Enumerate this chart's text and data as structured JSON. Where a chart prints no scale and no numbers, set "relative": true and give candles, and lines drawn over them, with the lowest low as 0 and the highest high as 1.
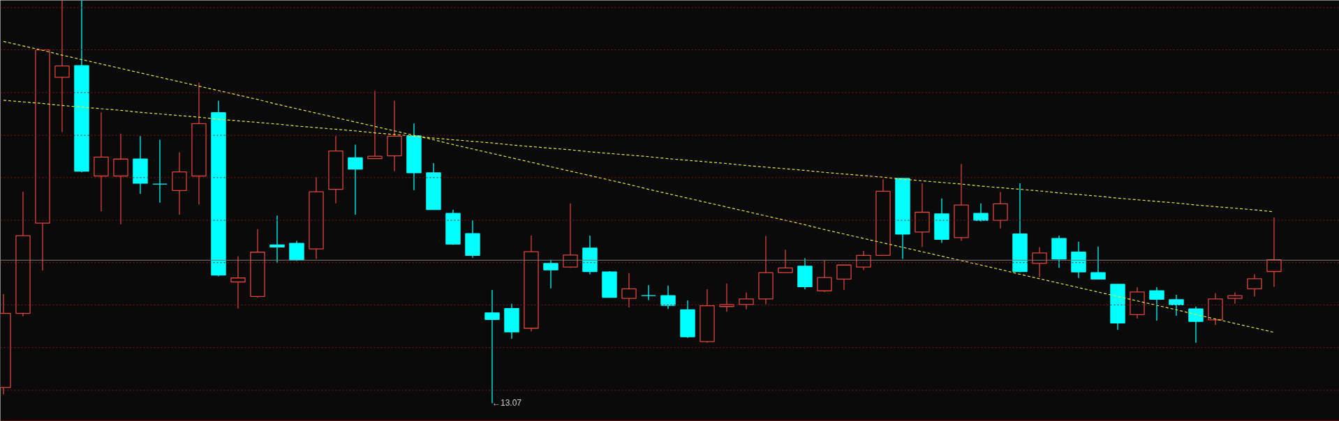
{
  "chart_data": {
    "type": "candlestick",
    "relative": true,
    "categories": [
      null,
      null,
      null,
      null,
      null,
      null,
      null,
      null,
      null,
      null,
      null,
      null,
      null,
      null,
      null,
      null,
      null,
      null,
      null,
      null,
      null,
      null,
      null,
      null,
      null,
      null,
      null,
      null,
      null,
      null,
      null,
      null,
      null,
      null,
      null,
      null,
      null,
      null,
      null,
      null,
      null,
      null,
      null,
      null,
      null,
      null,
      null,
      null,
      null,
      null,
      null,
      null,
      null,
      null,
      null,
      null,
      null,
      null,
      null,
      null,
      null,
      null,
      null,
      null,
      null,
      null
    ],
    "ohlc": [
      [
        0.039,
        0.271,
        0.022,
        0.223
      ],
      [
        0.223,
        0.525,
        0.216,
        0.416
      ],
      [
        0.447,
        0.877,
        0.329,
        0.877
      ],
      [
        0.809,
        1,
        0.673,
        0.837
      ],
      [
        0.838,
        1,
        0.573,
        0.576
      ],
      [
        0.564,
        0.722,
        0.476,
        0.611
      ],
      [
        0.564,
        0.669,
        0.444,
        0.606
      ],
      [
        0.606,
        0.663,
        0.52,
        0.546
      ],
      [
        0.544,
        0.654,
        0.498,
        0.544
      ],
      [
        0.528,
        0.623,
        0.468,
        0.574
      ],
      [
        0.564,
        0.796,
        0.493,
        0.694
      ],
      [
        0.721,
        0.751,
        0.315,
        0.318
      ],
      [
        0.301,
        0.365,
        0.235,
        0.311
      ],
      [
        0.265,
        0.432,
        0.262,
        0.375
      ],
      [
        0.393,
        0.466,
        0.348,
        0.388
      ],
      [
        0.397,
        0.403,
        0.353,
        0.356
      ],
      [
        0.383,
        0.561,
        0.358,
        0.525
      ],
      [
        0.531,
        0.663,
        0.496,
        0.626
      ],
      [
        0.609,
        0.642,
        0.468,
        0.581
      ],
      [
        0.607,
        0.775,
        0.607,
        0.613
      ],
      [
        0.614,
        0.751,
        0.576,
        0.663
      ],
      [
        0.664,
        0.694,
        0.529,
        0.572
      ],
      [
        0.572,
        0.596,
        0.481,
        0.481
      ],
      [
        0.471,
        0.48,
        0.393,
        0.395
      ],
      [
        0.421,
        0.454,
        0.361,
        0.367
      ],
      [
        0.224,
        0.281,
        0,
        0.208
      ],
      [
        0.235,
        0.247,
        0.16,
        0.177
      ],
      [
        0.186,
        0.416,
        0.178,
        0.376
      ],
      [
        0.347,
        0.356,
        0.285,
        0.331
      ],
      [
        0.338,
        0.496,
        0.336,
        0.368
      ],
      [
        0.385,
        0.416,
        0.32,
        0.327
      ],
      [
        0.326,
        0.328,
        0.262,
        0.263
      ],
      [
        0.26,
        0.323,
        0.238,
        0.284
      ],
      [
        0.267,
        0.293,
        0.256,
        0.267
      ],
      [
        0.267,
        0.292,
        0.234,
        0.243
      ],
      [
        0.232,
        0.255,
        0.162,
        0.165
      ],
      [
        0.153,
        0.283,
        0.15,
        0.242
      ],
      [
        0.24,
        0.297,
        0.227,
        0.245
      ],
      [
        0.245,
        0.275,
        0.233,
        0.259
      ],
      [
        0.259,
        0.415,
        0.246,
        0.324
      ],
      [
        0.324,
        0.381,
        0.324,
        0.336
      ],
      [
        0.34,
        0.36,
        0.283,
        0.289
      ],
      [
        0.279,
        0.355,
        0.276,
        0.312
      ],
      [
        0.308,
        0.343,
        0.281,
        0.343
      ],
      [
        0.338,
        0.378,
        0.331,
        0.367
      ],
      [
        0.367,
        0.556,
        0.367,
        0.526
      ],
      [
        0.558,
        0.559,
        0.358,
        0.42
      ],
      [
        0.425,
        0.546,
        0.388,
        0.474
      ],
      [
        0.47,
        0.508,
        0.398,
        0.407
      ],
      [
        0.411,
        0.594,
        0.403,
        0.492
      ],
      [
        0.471,
        0.496,
        0.451,
        0.454
      ],
      [
        0.454,
        0.524,
        0.434,
        0.495
      ],
      [
        0.42,
        0.546,
        0.325,
        0.327
      ],
      [
        0.347,
        0.387,
        0.313,
        0.373
      ],
      [
        0.409,
        0.416,
        0.336,
        0.358
      ],
      [
        0.375,
        0.401,
        0.311,
        0.326
      ],
      [
        0.324,
        0.389,
        0.307,
        0.308
      ],
      [
        0.295,
        0.295,
        0.182,
        0.199
      ],
      [
        0.22,
        0.288,
        0.21,
        0.276
      ],
      [
        0.279,
        0.288,
        0.205,
        0.258
      ],
      [
        0.257,
        0.269,
        0.217,
        0.244
      ],
      [
        0.234,
        0.24,
        0.15,
        0.203
      ],
      [
        0.207,
        0.273,
        0.194,
        0.259
      ],
      [
        0.26,
        0.275,
        0.247,
        0.267
      ],
      [
        0.284,
        0.32,
        0.265,
        0.309
      ],
      [
        0.327,
        0.461,
        0.289,
        0.356
      ]
    ],
    "colors": [
      "#e0453c",
      "#e0453c",
      "#e0453c",
      "#e0453c",
      "#00ffff",
      "#e0453c",
      "#e0453c",
      "#00ffff",
      "#00ffff",
      "#e0453c",
      "#e0453c",
      "#00ffff",
      "#e0453c",
      "#e0453c",
      "#00ffff",
      "#00ffff",
      "#e0453c",
      "#e0453c",
      "#00ffff",
      "#e0453c",
      "#e0453c",
      "#00ffff",
      "#00ffff",
      "#00ffff",
      "#00ffff",
      "#00ffff",
      "#00ffff",
      "#e0453c",
      "#00ffff",
      "#e0453c",
      "#00ffff",
      "#00ffff",
      "#e0453c",
      "#00ffff",
      "#00ffff",
      "#00ffff",
      "#e0453c",
      "#e0453c",
      "#e0453c",
      "#e0453c",
      "#e0453c",
      "#00ffff",
      "#e0453c",
      "#e0453c",
      "#e0453c",
      "#e0453c",
      "#00ffff",
      "#e0453c",
      "#00ffff",
      "#e0453c",
      "#00ffff",
      "#e0453c",
      "#00ffff",
      "#e0453c",
      "#00ffff",
      "#00ffff",
      "#00ffff",
      "#00ffff",
      "#e0453c",
      "#00ffff",
      "#00ffff",
      "#00ffff",
      "#e0453c",
      "#e0453c",
      "#e0453c",
      "#e0453c"
    ],
    "series": [
      {
        "type": "line",
        "color": "#e8e83a",
        "line_style": "dashed",
        "values": [
          0.898,
          0.887,
          0.876,
          0.864,
          0.853,
          0.842,
          0.831,
          0.82,
          0.809,
          0.798,
          0.787,
          0.776,
          0.765,
          0.754,
          0.742,
          0.731,
          0.72,
          0.709,
          0.698,
          0.687,
          0.676,
          0.665,
          0.654,
          0.642,
          0.631,
          0.62,
          0.609,
          0.598,
          0.587,
          0.576,
          0.565,
          0.554,
          0.543,
          0.531,
          0.52,
          0.509,
          0.498,
          0.487,
          0.476,
          0.465,
          0.454,
          0.443,
          0.431,
          0.42,
          0.409,
          0.398,
          0.387,
          0.376,
          0.365,
          0.354,
          0.343,
          0.332,
          0.32,
          0.309,
          0.298,
          0.287,
          0.276,
          0.265,
          0.254,
          0.243,
          0.232,
          0.22,
          0.209,
          0.198,
          0.187,
          0.176
        ]
      },
      {
        "type": "line",
        "color": "#e8e83a",
        "line_style": "dashed",
        "values": [
          0.752,
          0.748,
          0.744,
          0.739,
          0.735,
          0.731,
          0.727,
          0.722,
          0.718,
          0.714,
          0.71,
          0.705,
          0.701,
          0.697,
          0.693,
          0.688,
          0.684,
          0.68,
          0.676,
          0.671,
          0.667,
          0.663,
          0.658,
          0.654,
          0.65,
          0.646,
          0.641,
          0.637,
          0.633,
          0.629,
          0.624,
          0.62,
          0.616,
          0.612,
          0.607,
          0.603,
          0.599,
          0.595,
          0.59,
          0.586,
          0.582,
          0.578,
          0.573,
          0.569,
          0.565,
          0.561,
          0.556,
          0.552,
          0.548,
          0.544,
          0.539,
          0.535,
          0.531,
          0.527,
          0.522,
          0.518,
          0.514,
          0.509,
          0.505,
          0.501,
          0.497,
          0.492,
          0.488,
          0.484,
          0.48,
          0.475
        ]
      }
    ],
    "ref_lines": [
      {
        "axis": "y",
        "value": 0.355,
        "color": "#7a7a7a",
        "line_style": "solid"
      },
      {
        "axis": "y",
        "value": 0.982,
        "color": "#8b1a1a",
        "line_style": "dotted"
      },
      {
        "axis": "y",
        "value": 0.877,
        "color": "#8b1a1a",
        "line_style": "dotted"
      },
      {
        "axis": "y",
        "value": 0.771,
        "color": "#8b1a1a",
        "line_style": "dotted"
      },
      {
        "axis": "y",
        "value": 0.665,
        "color": "#8b1a1a",
        "line_style": "dotted"
      },
      {
        "axis": "y",
        "value": 0.56,
        "color": "#8b1a1a",
        "line_style": "dotted"
      },
      {
        "axis": "y",
        "value": 0.454,
        "color": "#8b1a1a",
        "line_style": "dotted"
      },
      {
        "axis": "y",
        "value": 0.349,
        "color": "#8b1a1a",
        "line_style": "dotted"
      },
      {
        "axis": "y",
        "value": 0.244,
        "color": "#8b1a1a",
        "line_style": "dotted"
      },
      {
        "axis": "y",
        "value": 0.138,
        "color": "#8b1a1a",
        "line_style": "dotted"
      },
      {
        "axis": "y",
        "value": 0.032,
        "color": "#8b1a1a",
        "line_style": "dotted"
      }
    ],
    "annotations": [
      "←13.07"
    ]
  }
}
